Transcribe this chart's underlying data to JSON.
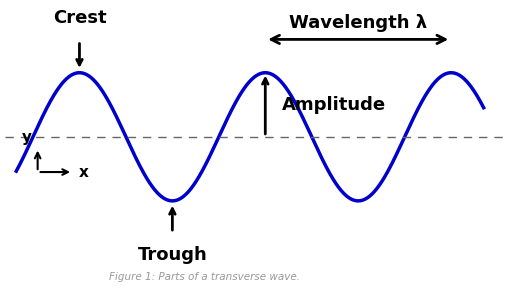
{
  "background_color": "#ffffff",
  "wave_color": "#0000cc",
  "wave_linewidth": 2.5,
  "amplitude": 1.0,
  "wavelength": 2.0,
  "x_start": -0.18,
  "x_end": 4.85,
  "num_points": 1000,
  "fig_caption": "Figure 1: Parts of a transverse wave.",
  "caption_color": "#999999",
  "caption_fontsize": 7.5,
  "label_fontsize": 13,
  "axis_label_fontsize": 11,
  "dashed_line_color": "#666666",
  "crest_label": "Crest",
  "trough_label": "Trough",
  "amplitude_label": "Amplitude",
  "wavelength_label": "Wavelength λ",
  "x_axis_label": "x",
  "y_axis_label": "y",
  "xlim_min": -0.3,
  "xlim_max": 5.1,
  "ylim_min": -2.0,
  "ylim_max": 2.0,
  "equilibrium_y": 0.0,
  "crest1_x": 0.5,
  "trough1_x": 1.5,
  "crest2_x": 2.5,
  "trough2_x": 3.5,
  "crest3_x": 4.5
}
